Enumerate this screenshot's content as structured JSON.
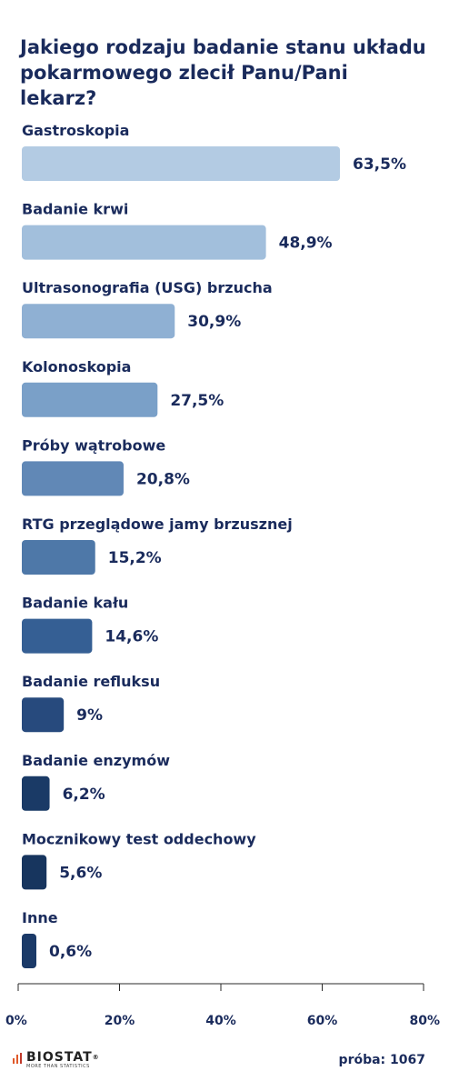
{
  "title": "Jakiego rodzaju badanie stanu układu pokarmowego zlecił Panu/Pani lekarz?",
  "chart_data": {
    "type": "bar",
    "orientation": "horizontal",
    "categories": [
      "Gastroskopia",
      "Badanie krwi",
      "Ultrasonografia (USG) brzucha",
      "Kolonoskopia",
      "Próby wątrobowe",
      "RTG przeglądowe jamy brzusznej",
      "Badanie kału",
      "Badanie refluksu",
      "Badanie enzymów",
      "Mocznikowy test oddechowy",
      "Inne"
    ],
    "values": [
      63.5,
      48.9,
      30.9,
      27.5,
      20.8,
      15.2,
      14.6,
      9,
      6.2,
      5.6,
      0.6
    ],
    "value_labels": [
      "63,5%",
      "48,9%",
      "30,9%",
      "27,5%",
      "20,8%",
      "15,2%",
      "14,6%",
      "9%",
      "6,2%",
      "5,6%",
      "0,6%"
    ],
    "colors": [
      "#b3cbe3",
      "#a2bfdc",
      "#8fb0d3",
      "#7aa0c8",
      "#6188b6",
      "#4e78a8",
      "#355f94",
      "#274a7d",
      "#1a3a66",
      "#17355e",
      "#1b3a68"
    ],
    "x_ticks": [
      0,
      20,
      40,
      60,
      80
    ],
    "x_tick_labels": [
      "0%",
      "20%",
      "40%",
      "60%",
      "80%"
    ],
    "xlim": [
      0,
      80
    ],
    "grid": false
  },
  "footer": {
    "brand": "BIOSTAT",
    "brand_mark": "®",
    "tagline": "MORE THAN STATISTICS",
    "sample": "próba: 1067"
  }
}
